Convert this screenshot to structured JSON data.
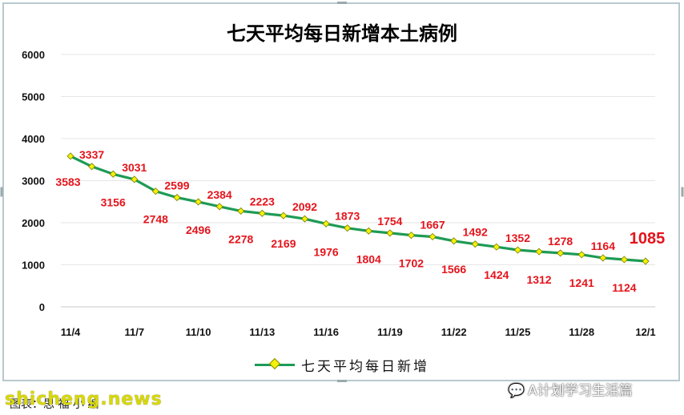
{
  "chart_data": {
    "type": "line",
    "title": "七天平均每日新增本土病例",
    "xlabel": "",
    "ylabel": "",
    "ylim": [
      0,
      6000
    ],
    "yticks": [
      "0",
      "1000",
      "2000",
      "3000",
      "4000",
      "5000",
      "6000"
    ],
    "x": [
      "11/4",
      "11/5",
      "11/6",
      "11/7",
      "11/8",
      "11/9",
      "11/10",
      "11/11",
      "11/12",
      "11/13",
      "11/14",
      "11/15",
      "11/16",
      "11/17",
      "11/18",
      "11/19",
      "11/20",
      "11/21",
      "11/22",
      "11/23",
      "11/24",
      "11/25",
      "11/26",
      "11/27",
      "11/28",
      "11/29",
      "11/30",
      "12/1"
    ],
    "xtick_labels": [
      "11/4",
      "11/7",
      "11/10",
      "11/13",
      "11/16",
      "11/19",
      "11/22",
      "11/25",
      "11/28",
      "12/1"
    ],
    "series": [
      {
        "name": "七天平均每日新增",
        "values": [
          3583,
          3337,
          3156,
          3031,
          2748,
          2599,
          2496,
          2384,
          2278,
          2223,
          2169,
          2092,
          1976,
          1873,
          1804,
          1754,
          1702,
          1667,
          1566,
          1492,
          1424,
          1352,
          1312,
          1278,
          1241,
          1164,
          1124,
          1085
        ]
      }
    ],
    "data_labels": [
      "3583",
      "3337",
      "3156",
      "3031",
      "2748",
      "2599",
      "2496",
      "2384",
      "2278",
      "2223",
      "2169",
      "2092",
      "1976",
      "1873",
      "1804",
      "1754",
      "1702",
      "1667",
      "1566",
      "1492",
      "1424",
      "1352",
      "1312",
      "1278",
      "1241",
      "1164",
      "1124",
      "1085"
    ],
    "grid": true,
    "legend": "bottom-center",
    "colors": {
      "line": "#1e9b55",
      "marker": "#f2f20a",
      "labels": "#e4141c",
      "grid": "#e6e6e6"
    }
  },
  "legend": {
    "label": "七天平均每日新增"
  },
  "footer": {
    "watermark_left": "shicheng.news",
    "source_text": "图表：思  福  小  编",
    "watermark_right": "A计划学习生活篇"
  }
}
